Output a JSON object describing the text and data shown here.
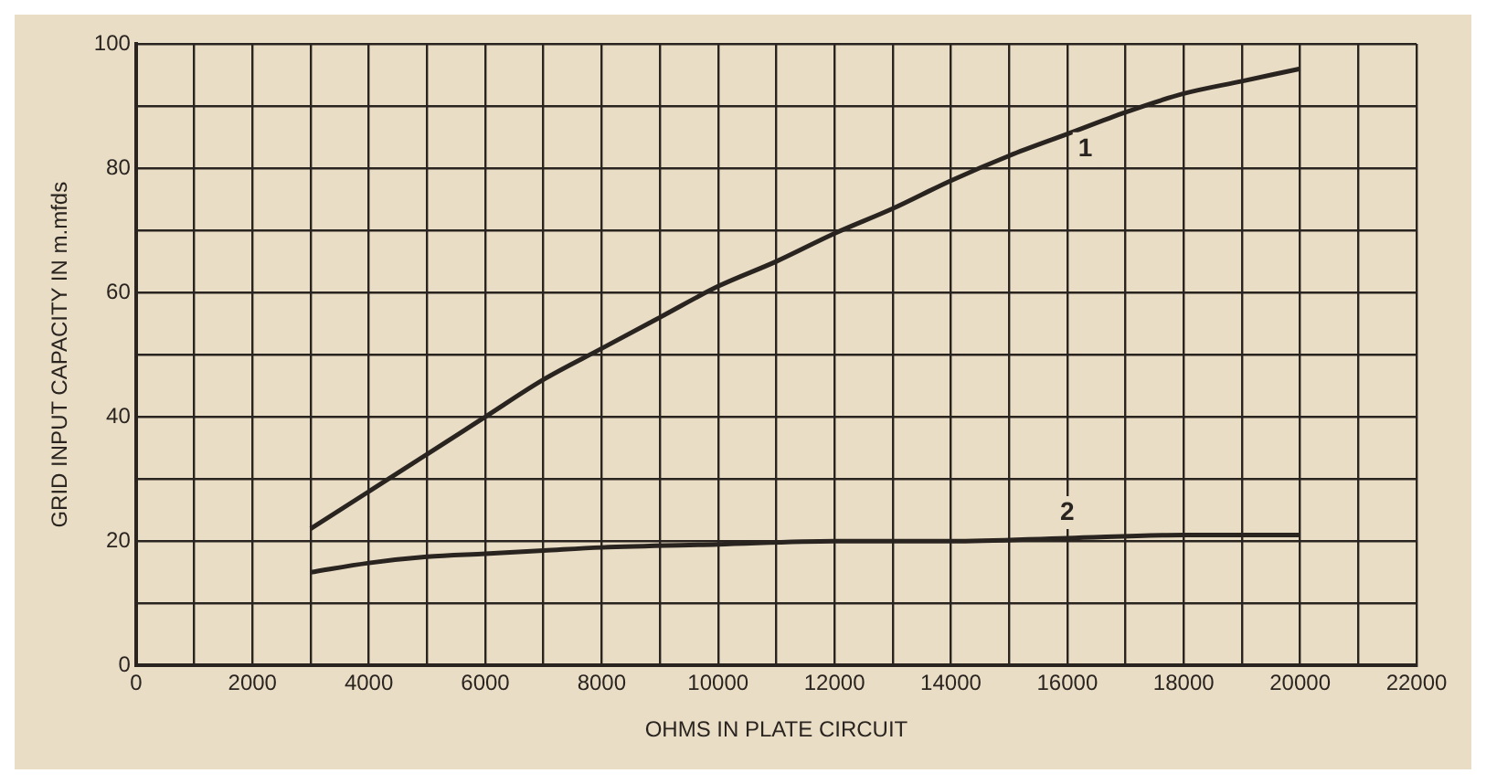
{
  "chart_data": {
    "type": "line",
    "xlabel": "OHMS IN PLATE CIRCUIT",
    "ylabel": "GRID INPUT CAPACITY IN m.mfds",
    "xlim": [
      0,
      22000
    ],
    "ylim": [
      0,
      100
    ],
    "xticks": [
      0,
      {
        "value": 1000,
        "label": null
      },
      2000,
      {
        "value": 3000,
        "label": null
      },
      4000,
      {
        "value": 5000,
        "label": null
      },
      6000,
      {
        "value": 7000,
        "label": null
      },
      8000,
      {
        "value": 9000,
        "label": null
      },
      10000,
      {
        "value": 11000,
        "label": null
      },
      12000,
      {
        "value": 13000,
        "label": null
      },
      14000,
      {
        "value": 15000,
        "label": null
      },
      16000,
      {
        "value": 17000,
        "label": null
      },
      18000,
      {
        "value": 19000,
        "label": null
      },
      20000,
      {
        "value": 21000,
        "label": null
      },
      22000
    ],
    "yticks": [
      0,
      {
        "value": 10,
        "label": null
      },
      20,
      {
        "value": 30,
        "label": null
      },
      40,
      {
        "value": 50,
        "label": null
      },
      60,
      {
        "value": 70,
        "label": null
      },
      80,
      {
        "value": 90,
        "label": null
      },
      100
    ],
    "grid": true,
    "marker": "none",
    "line_style": "solid",
    "series": [
      {
        "name": "1",
        "color": "#2a2420",
        "x": [
          3000,
          4000,
          5000,
          6000,
          7000,
          8000,
          9000,
          10000,
          11000,
          12000,
          13000,
          14000,
          15000,
          16000,
          17000,
          18000,
          19000,
          20000
        ],
        "values": [
          22,
          28,
          34,
          40,
          46,
          51,
          56,
          61,
          65,
          69.5,
          73.5,
          78,
          82,
          85.5,
          89,
          92,
          94,
          96
        ]
      },
      {
        "name": "2",
        "color": "#2a2420",
        "x": [
          3000,
          4000,
          5000,
          6000,
          7000,
          8000,
          10000,
          12000,
          14000,
          16000,
          18000,
          20000
        ],
        "values": [
          15,
          16.5,
          17.5,
          18,
          18.5,
          19,
          19.5,
          20,
          20,
          20.5,
          21,
          21
        ]
      }
    ]
  }
}
